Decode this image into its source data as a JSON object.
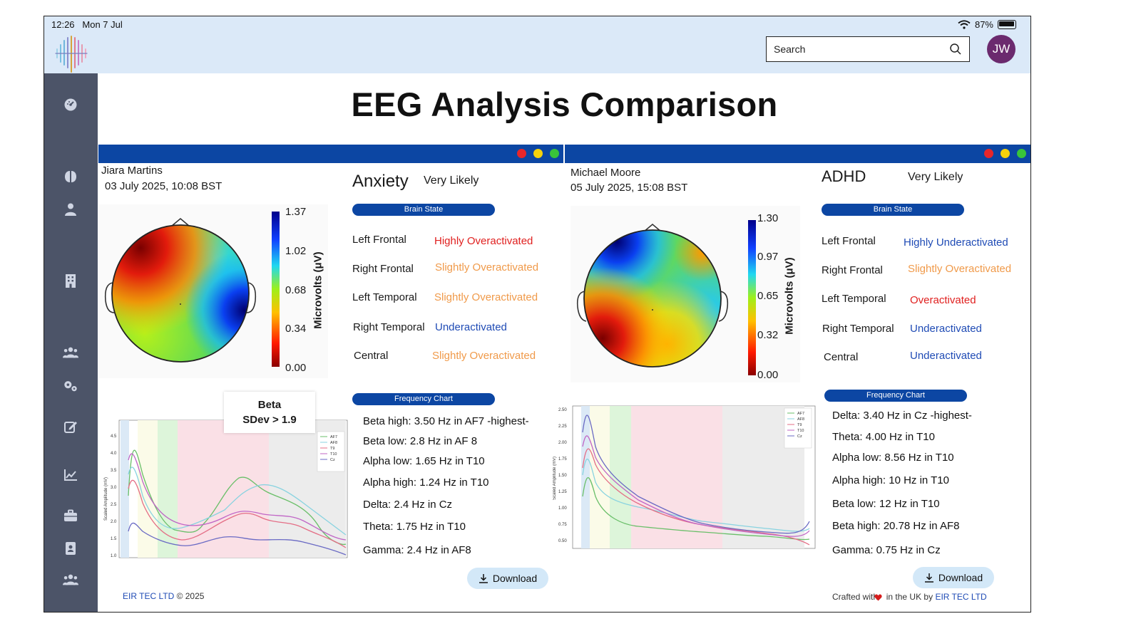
{
  "status": {
    "time": "12:26",
    "date": "Mon 7 Jul",
    "battery": "87%"
  },
  "header": {
    "search_placeholder": "Search",
    "avatar_initials": "JW"
  },
  "page": {
    "title": "EEG Analysis Comparison"
  },
  "colors": {
    "bar": "#0c46a3",
    "over": "#e0201f",
    "slight": "#f09a4a",
    "under": "#1f4bb5",
    "dot_red": "#e8262a",
    "dot_yellow": "#f5d20c",
    "dot_green": "#39c43a"
  },
  "left": {
    "patient": "Jiara Martins",
    "date": "03 July 2025, 10:08 BST",
    "condition": "Anxiety",
    "likelihood": "Very Likely",
    "brain_state_label": "Brain State",
    "states": [
      {
        "region": "Left Frontal",
        "value": "Highly Overactivated",
        "kind": "over"
      },
      {
        "region": "Right Frontal",
        "value": "Slightly Overactivated",
        "kind": "slight"
      },
      {
        "region": "Left Temporal",
        "value": "Slightly Overactivated",
        "kind": "slight"
      },
      {
        "region": "Right Temporal",
        "value": "Underactivated",
        "kind": "under"
      },
      {
        "region": "Central",
        "value": "Slightly Overactivated",
        "kind": "slight"
      }
    ],
    "colorbar": {
      "ticks": [
        "1.37",
        "1.02",
        "0.68",
        "0.34",
        "0.00"
      ],
      "label": "Microvolts (μV)"
    },
    "frequency_label": "Frequency Chart",
    "frequencies": [
      "Beta high: 3.50 Hz in AF7  -highest-",
      "Beta low: 2.8 Hz in AF 8",
      "Alpha low: 1.65 Hz in T10",
      "Alpha high: 1.24 Hz in T10",
      "Delta: 2.4 Hz in Cz",
      "Theta: 1.75 Hz in T10",
      "Gamma: 2.4 Hz in AF8"
    ],
    "tooltip": {
      "line1": "Beta",
      "line2": "SDev > 1.9"
    },
    "chart": {
      "yticks": [
        "4.5",
        "4.0",
        "3.5",
        "3.0",
        "2.5",
        "2.0",
        "1.5",
        "1.0"
      ],
      "ylabel": "Scaled Amplitude (mV)",
      "legend": [
        "AF7",
        "AF8",
        "T9",
        "T10",
        "Cz"
      ]
    },
    "download": "Download"
  },
  "right": {
    "patient": "Michael Moore",
    "date": "05 July 2025, 15:08 BST",
    "condition": "ADHD",
    "likelihood": "Very Likely",
    "brain_state_label": "Brain State",
    "states": [
      {
        "region": "Left Frontal",
        "value": "Highly Underactivated",
        "kind": "under"
      },
      {
        "region": "Right Frontal",
        "value": "Slightly Overactivated",
        "kind": "slight"
      },
      {
        "region": "Left Temporal",
        "value": "Overactivated",
        "kind": "over"
      },
      {
        "region": "Right Temporal",
        "value": "Underactivated",
        "kind": "under"
      },
      {
        "region": "Central",
        "value": "Underactivated",
        "kind": "under"
      }
    ],
    "colorbar": {
      "ticks": [
        "1.30",
        "0.97",
        "0.65",
        "0.32",
        "0.00"
      ],
      "label": "Microvolts (μV)"
    },
    "frequency_label": "Frequency Chart",
    "frequencies": [
      "Delta: 3.40 Hz in Cz   -highest-",
      "Theta: 4.00 Hz in T10",
      "Alpha low: 8.56 Hz in T10",
      "Alpha high: 10 Hz in T10",
      "Beta low: 12 Hz in T10",
      "Beta high: 20.78 Hz in AF8",
      "Gamma: 0.75 Hz in Cz"
    ],
    "chart": {
      "yticks": [
        "2.50",
        "2.25",
        "2.00",
        "1.75",
        "1.50",
        "1.25",
        "1.00",
        "0.75",
        "0.50"
      ],
      "ylabel": "Scaled Amplitude (mV)",
      "legend": [
        "AF7",
        "AF8",
        "T9",
        "T10",
        "Cz"
      ]
    },
    "download": "Download"
  },
  "footer": {
    "left_company": "EIR TEC LTD",
    "left_copy": "© 2025",
    "right_prefix": "Crafted with",
    "right_mid": "in the UK by",
    "right_company": "EIR TEC LTD"
  }
}
